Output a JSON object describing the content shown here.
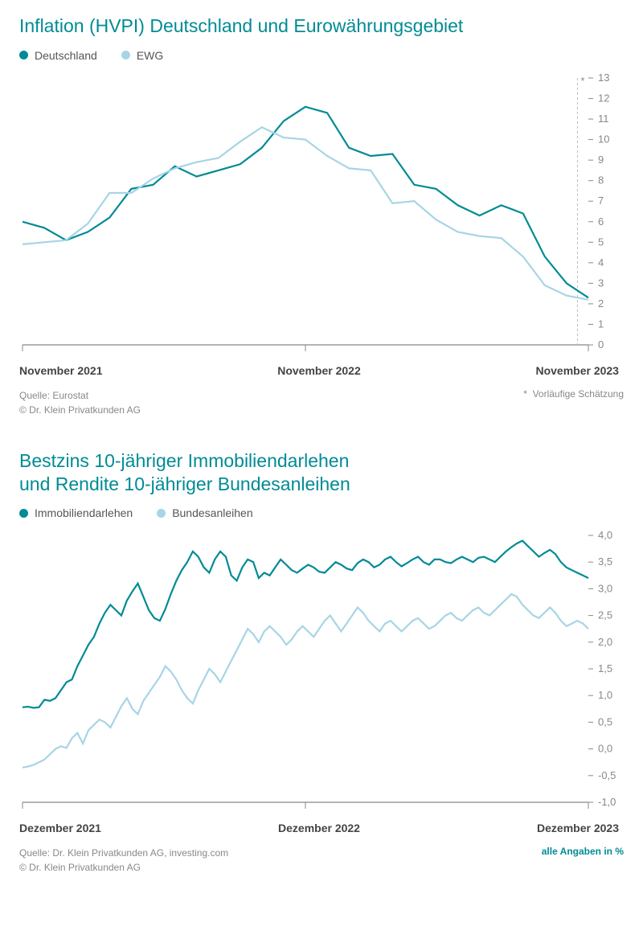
{
  "chart1": {
    "type": "line",
    "title": "Inflation (HVPI) Deutschland und Eurowährungsgebiet",
    "legend": [
      {
        "label": "Deutschland",
        "color": "#008b95"
      },
      {
        "label": "EWG",
        "color": "#a7d5e5"
      }
    ],
    "y_axis": {
      "min": 0,
      "max": 13,
      "tick_step": 1,
      "side": "right"
    },
    "x_labels": [
      "November 2021",
      "November 2022",
      "November 2023"
    ],
    "line_width": 2.2,
    "background_color": "#ffffff",
    "tick_color": "#888888",
    "label_fontsize": 13,
    "title_fontsize": 23,
    "title_color": "#008b95",
    "series": [
      {
        "name": "Deutschland",
        "color": "#008b95",
        "values": [
          6.0,
          5.7,
          5.1,
          5.5,
          6.2,
          7.6,
          7.8,
          8.7,
          8.2,
          8.5,
          8.8,
          9.6,
          10.9,
          11.6,
          11.3,
          9.6,
          9.2,
          9.3,
          7.8,
          7.6,
          6.8,
          6.3,
          6.8,
          6.4,
          4.3,
          3.0,
          2.3
        ]
      },
      {
        "name": "EWG",
        "color": "#a7d5e5",
        "values": [
          4.9,
          5.0,
          5.1,
          5.9,
          7.4,
          7.4,
          8.1,
          8.6,
          8.9,
          9.1,
          9.9,
          10.6,
          10.1,
          10.0,
          9.2,
          8.6,
          8.5,
          6.9,
          7.0,
          6.1,
          5.5,
          5.3,
          5.2,
          4.3,
          2.9,
          2.4,
          2.2
        ]
      }
    ],
    "estimate_marker": {
      "asterisk": "*",
      "note": "Vorläufige Schätzung",
      "dash_color": "#bbbbbb"
    },
    "source": "Quelle: Eurostat",
    "copyright": "© Dr. Klein Privatkunden AG"
  },
  "chart2": {
    "type": "line",
    "title": "Bestzins 10-jähriger Immobiliendarlehen\nund Rendite 10-jähriger Bundesanleihen",
    "legend": [
      {
        "label": "Immobiliendarlehen",
        "color": "#008b95"
      },
      {
        "label": "Bundesanleihen",
        "color": "#a7d5e5"
      }
    ],
    "y_axis": {
      "min": -1.0,
      "max": 4.0,
      "tick_step": 0.5,
      "side": "right",
      "decimal_sep": ","
    },
    "x_labels": [
      "Dezember 2021",
      "Dezember 2022",
      "Dezember 2023"
    ],
    "line_width": 2.2,
    "background_color": "#ffffff",
    "tick_color": "#888888",
    "label_fontsize": 13,
    "title_fontsize": 23,
    "title_color": "#008b95",
    "series": [
      {
        "name": "Immobiliendarlehen",
        "color": "#008b95",
        "values": [
          0.78,
          0.79,
          0.77,
          0.78,
          0.92,
          0.9,
          0.95,
          1.1,
          1.25,
          1.3,
          1.55,
          1.75,
          1.95,
          2.1,
          2.35,
          2.55,
          2.7,
          2.6,
          2.5,
          2.78,
          2.95,
          3.1,
          2.85,
          2.6,
          2.45,
          2.4,
          2.62,
          2.9,
          3.15,
          3.35,
          3.5,
          3.7,
          3.6,
          3.4,
          3.3,
          3.55,
          3.7,
          3.6,
          3.25,
          3.15,
          3.4,
          3.55,
          3.5,
          3.2,
          3.3,
          3.25,
          3.4,
          3.55,
          3.45,
          3.35,
          3.3,
          3.38,
          3.45,
          3.4,
          3.32,
          3.3,
          3.4,
          3.5,
          3.45,
          3.38,
          3.35,
          3.48,
          3.55,
          3.5,
          3.4,
          3.45,
          3.55,
          3.6,
          3.5,
          3.42,
          3.48,
          3.55,
          3.6,
          3.5,
          3.45,
          3.55,
          3.55,
          3.5,
          3.48,
          3.55,
          3.6,
          3.55,
          3.5,
          3.58,
          3.6,
          3.55,
          3.5,
          3.6,
          3.7,
          3.78,
          3.85,
          3.9,
          3.8,
          3.7,
          3.6,
          3.67,
          3.73,
          3.65,
          3.5,
          3.4,
          3.35,
          3.3,
          3.25,
          3.2
        ]
      },
      {
        "name": "Bundesanleihen",
        "color": "#a7d5e5",
        "values": [
          -0.35,
          -0.33,
          -0.3,
          -0.25,
          -0.2,
          -0.1,
          0.0,
          0.05,
          0.02,
          0.2,
          0.3,
          0.1,
          0.35,
          0.45,
          0.55,
          0.5,
          0.4,
          0.6,
          0.8,
          0.95,
          0.75,
          0.65,
          0.9,
          1.05,
          1.2,
          1.35,
          1.55,
          1.45,
          1.3,
          1.1,
          0.95,
          0.85,
          1.1,
          1.3,
          1.5,
          1.4,
          1.25,
          1.45,
          1.65,
          1.85,
          2.05,
          2.25,
          2.15,
          2.0,
          2.2,
          2.3,
          2.2,
          2.1,
          1.95,
          2.05,
          2.2,
          2.3,
          2.2,
          2.1,
          2.25,
          2.4,
          2.5,
          2.35,
          2.2,
          2.35,
          2.5,
          2.65,
          2.55,
          2.4,
          2.3,
          2.2,
          2.35,
          2.4,
          2.3,
          2.2,
          2.3,
          2.4,
          2.45,
          2.35,
          2.25,
          2.3,
          2.4,
          2.5,
          2.55,
          2.45,
          2.4,
          2.5,
          2.6,
          2.65,
          2.55,
          2.5,
          2.6,
          2.7,
          2.8,
          2.9,
          2.85,
          2.7,
          2.6,
          2.5,
          2.45,
          2.55,
          2.65,
          2.55,
          2.4,
          2.3,
          2.35,
          2.4,
          2.35,
          2.25
        ]
      }
    ],
    "source": "Quelle: Dr. Klein Privatkunden AG, investing.com",
    "copyright": "© Dr. Klein Privatkunden AG",
    "units_note": "alle Angaben in %"
  }
}
